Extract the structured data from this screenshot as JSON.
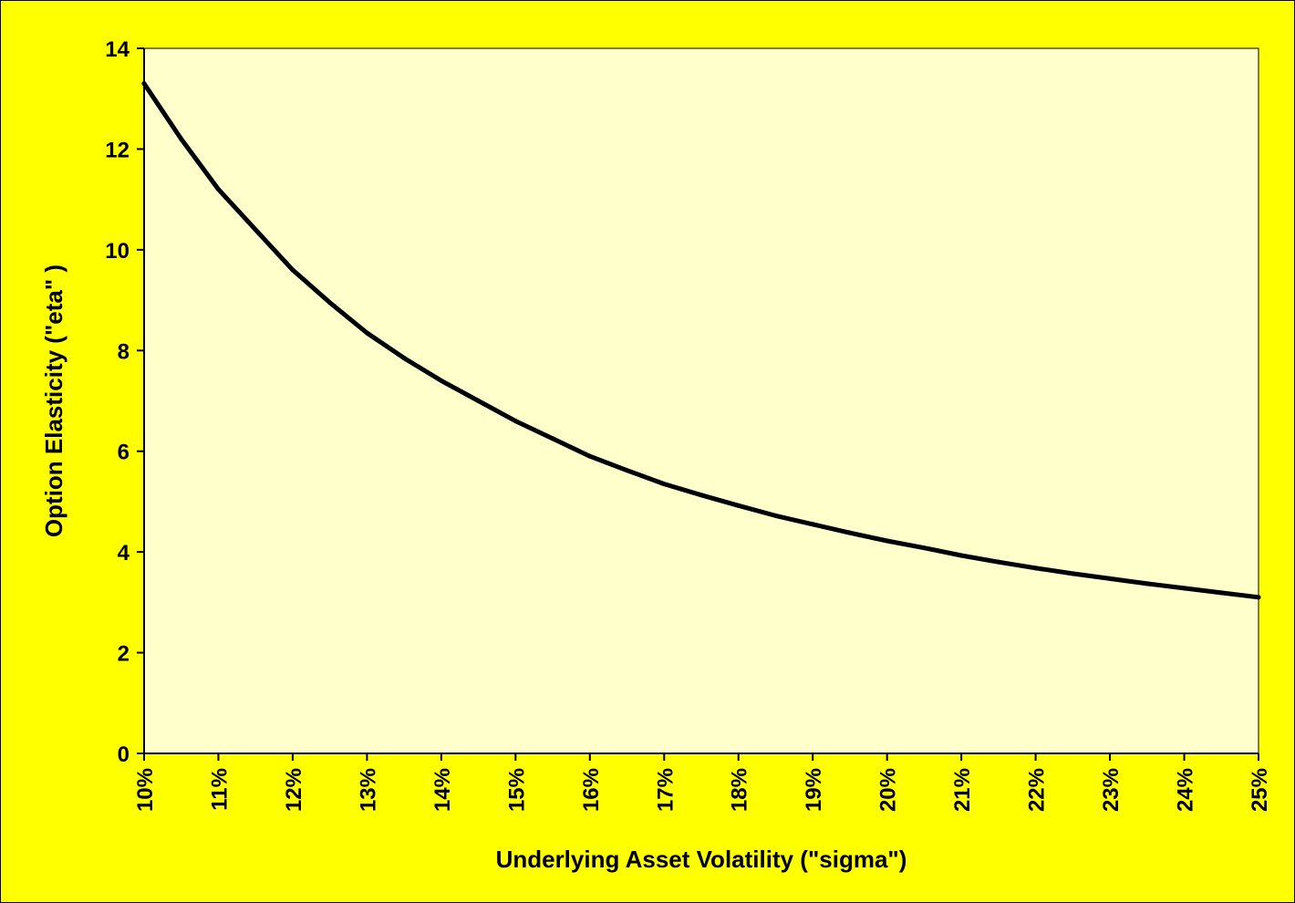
{
  "chart_data": {
    "type": "line",
    "title": "",
    "xlabel": "Underlying Asset Volatility (\"sigma\")",
    "ylabel": "Option Elasticity (\"eta\" )",
    "xlim": [
      0.1,
      0.25
    ],
    "ylim": [
      0,
      14
    ],
    "x_ticks": [
      "10%",
      "11%",
      "12%",
      "13%",
      "14%",
      "15%",
      "16%",
      "17%",
      "18%",
      "19%",
      "20%",
      "21%",
      "22%",
      "23%",
      "24%",
      "25%"
    ],
    "y_ticks": [
      "0",
      "2",
      "4",
      "6",
      "8",
      "10",
      "12",
      "14"
    ],
    "grid": false,
    "legend": "none",
    "colors": {
      "page_background": "#ffff00",
      "plot_background": "#ffffcc",
      "line": "#000000"
    },
    "series": [
      {
        "x": [
          0.1,
          0.105,
          0.11,
          0.115,
          0.12,
          0.125,
          0.13,
          0.135,
          0.14,
          0.145,
          0.15,
          0.155,
          0.16,
          0.165,
          0.17,
          0.175,
          0.18,
          0.185,
          0.19,
          0.195,
          0.2,
          0.205,
          0.21,
          0.215,
          0.22,
          0.225,
          0.23,
          0.235,
          0.24,
          0.245,
          0.25
        ],
        "values": [
          13.3,
          12.2,
          11.2,
          10.4,
          9.6,
          8.95,
          8.35,
          7.85,
          7.4,
          7.0,
          6.6,
          6.25,
          5.9,
          5.62,
          5.35,
          5.13,
          4.92,
          4.72,
          4.55,
          4.38,
          4.22,
          4.08,
          3.93,
          3.8,
          3.68,
          3.57,
          3.47,
          3.37,
          3.28,
          3.19,
          3.1
        ]
      }
    ]
  }
}
